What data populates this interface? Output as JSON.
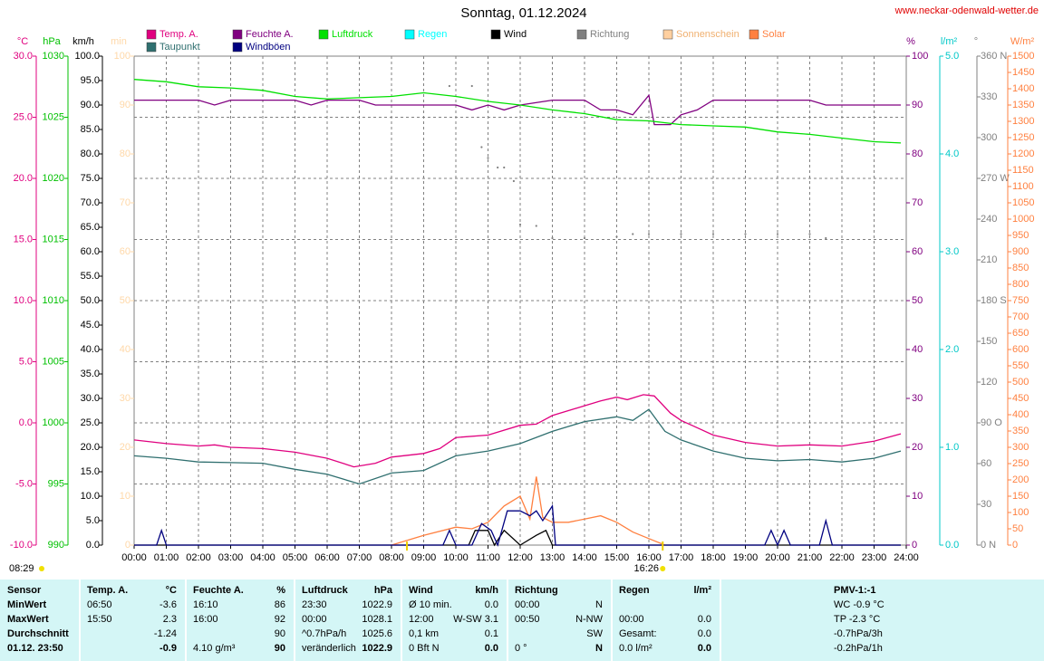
{
  "chart_data": {
    "type": "line",
    "title": "Sonntag, 01.12.2024",
    "site": "www.neckar-odenwald-wetter.de",
    "grid": true,
    "grid_axis": 0,
    "xlim": [
      0,
      24
    ],
    "xticks": [
      {
        "value": 0,
        "label": "00:00"
      },
      {
        "value": 1,
        "label": "01:00"
      },
      {
        "value": 2,
        "label": "02:00"
      },
      {
        "value": 3,
        "label": "03:00"
      },
      {
        "value": 4,
        "label": "04:00"
      },
      {
        "value": 5,
        "label": "05:00"
      },
      {
        "value": 6,
        "label": "06:00"
      },
      {
        "value": 7,
        "label": "07:00"
      },
      {
        "value": 8,
        "label": "08:00"
      },
      {
        "value": 9,
        "label": "09:00"
      },
      {
        "value": 10,
        "label": "10:00"
      },
      {
        "value": 11,
        "label": "11:00"
      },
      {
        "value": 12,
        "label": "12:00"
      },
      {
        "value": 13,
        "label": "13:00"
      },
      {
        "value": 14,
        "label": "14:00"
      },
      {
        "value": 15,
        "label": "15:00"
      },
      {
        "value": 16,
        "label": "16:00"
      },
      {
        "value": 17,
        "label": "17:00"
      },
      {
        "value": 18,
        "label": "18:00"
      },
      {
        "value": 19,
        "label": "19:00"
      },
      {
        "value": 20,
        "label": "20:00"
      },
      {
        "value": 21,
        "label": "21:00"
      },
      {
        "value": 22,
        "label": "22:00"
      },
      {
        "value": 23,
        "label": "23:00"
      },
      {
        "value": 24,
        "label": "24:00"
      }
    ],
    "axes": [
      {
        "unit": "°C",
        "color": "#e0007f",
        "lim": [
          -10,
          30
        ],
        "ticks": [
          {
            "value": 30,
            "label": "30.0"
          },
          {
            "value": 25,
            "label": "25.0"
          },
          {
            "value": 20,
            "label": "20.0"
          },
          {
            "value": 15,
            "label": "15.0"
          },
          {
            "value": 10,
            "label": "10.0"
          },
          {
            "value": 5,
            "label": "5.0"
          },
          {
            "value": 0,
            "label": "0.0"
          },
          {
            "value": -5,
            "label": "-5.0"
          },
          {
            "value": -10,
            "label": "-10.0"
          }
        ]
      },
      {
        "unit": "hPa",
        "color": "#00c000",
        "lim": [
          990,
          1030
        ],
        "ticks": [
          1030,
          1025,
          1020,
          1015,
          1010,
          1005,
          1000,
          995,
          990
        ]
      },
      {
        "unit": "km/h",
        "color": "#000000",
        "lim": [
          0,
          100
        ],
        "ticks": [
          {
            "value": 100,
            "label": "100.0"
          },
          {
            "value": 95,
            "label": "95.0"
          },
          {
            "value": 90,
            "label": "90.0"
          },
          {
            "value": 85,
            "label": "85.0"
          },
          {
            "value": 80,
            "label": "80.0"
          },
          {
            "value": 75,
            "label": "75.0"
          },
          {
            "value": 70,
            "label": "70.0"
          },
          {
            "value": 65,
            "label": "65.0"
          },
          {
            "value": 60,
            "label": "60.0"
          },
          {
            "value": 55,
            "label": "55.0"
          },
          {
            "value": 50,
            "label": "50.0"
          },
          {
            "value": 45,
            "label": "45.0"
          },
          {
            "value": 40,
            "label": "40.0"
          },
          {
            "value": 35,
            "label": "35.0"
          },
          {
            "value": 30,
            "label": "30.0"
          },
          {
            "value": 25,
            "label": "25.0"
          },
          {
            "value": 20,
            "label": "20.0"
          },
          {
            "value": 15,
            "label": "15.0"
          },
          {
            "value": 10,
            "label": "10.0"
          },
          {
            "value": 5,
            "label": "5.0"
          },
          {
            "value": 0,
            "label": "0.0"
          }
        ]
      },
      {
        "unit": "min",
        "color": "#ffd8a8",
        "lim": [
          0,
          100
        ],
        "ticks": [
          100,
          90,
          80,
          70,
          60,
          50,
          40,
          30,
          20,
          10,
          0
        ]
      },
      {
        "unit": "%",
        "color": "#800080",
        "lim": [
          0,
          100
        ],
        "ticks": [
          100,
          90,
          80,
          70,
          60,
          50,
          40,
          30,
          20,
          10,
          0
        ]
      },
      {
        "unit": "l/m²",
        "color": "#00c8c8",
        "lim": [
          0,
          5
        ],
        "ticks": [
          {
            "value": 5,
            "label": "5.0"
          },
          {
            "value": 4,
            "label": "4.0"
          },
          {
            "value": 3,
            "label": "3.0"
          },
          {
            "value": 2,
            "label": "2.0"
          },
          {
            "value": 1,
            "label": "1.0"
          },
          {
            "value": 0,
            "label": "0.0"
          }
        ]
      },
      {
        "unit": "°",
        "color": "#808080",
        "lim": [
          0,
          360
        ],
        "ticks": [
          {
            "value": 360,
            "label": "360 N"
          },
          330,
          300,
          {
            "value": 270,
            "label": "270 W"
          },
          240,
          210,
          {
            "value": 180,
            "label": "180 S"
          },
          150,
          120,
          {
            "value": 90,
            "label": "90 O"
          },
          60,
          30,
          {
            "value": 0,
            "label": "0 N"
          }
        ]
      },
      {
        "unit": "W/m²",
        "color": "#ff8040",
        "lim": [
          0,
          1500
        ],
        "ticks": [
          1500,
          1450,
          1400,
          1350,
          1300,
          1250,
          1200,
          1150,
          1100,
          1050,
          1000,
          950,
          900,
          850,
          800,
          750,
          700,
          650,
          600,
          550,
          500,
          450,
          400,
          350,
          300,
          250,
          200,
          150,
          100,
          50,
          0
        ]
      }
    ],
    "series": [
      {
        "name": "Temp. A.",
        "color": "#e0007f",
        "axis": 0,
        "style": "line",
        "x": [
          0,
          1,
          2,
          2.5,
          3,
          4,
          5,
          6,
          6.83,
          7.5,
          8,
          9,
          9.5,
          10,
          11,
          12,
          12.5,
          13,
          14,
          14.5,
          15,
          15.33,
          15.83,
          16.17,
          16.67,
          17,
          18,
          19,
          20,
          21,
          22,
          23,
          23.83
        ],
        "values": [
          -1.4,
          -1.7,
          -1.9,
          -1.8,
          -2.0,
          -2.1,
          -2.4,
          -2.9,
          -3.6,
          -3.3,
          -2.8,
          -2.5,
          -2.1,
          -1.2,
          -1.0,
          -0.2,
          -0.1,
          0.6,
          1.4,
          1.8,
          2.1,
          1.9,
          2.3,
          2.2,
          0.8,
          0.2,
          -1.0,
          -1.6,
          -1.9,
          -1.8,
          -1.9,
          -1.5,
          -0.9
        ]
      },
      {
        "name": "Feuchte A.",
        "color": "#800080",
        "axis": 4,
        "style": "line",
        "x": [
          0,
          1,
          2,
          2.5,
          3,
          5,
          5.5,
          6,
          7,
          7.5,
          10,
          10.5,
          11,
          11.5,
          12,
          13,
          14,
          14.5,
          15,
          15.5,
          16,
          16.17,
          16.67,
          17,
          17.5,
          18,
          21,
          21.5,
          23.83
        ],
        "values": [
          91,
          91,
          91,
          90,
          91,
          91,
          90,
          91,
          91,
          90,
          90,
          89,
          90,
          89,
          90,
          91,
          91,
          89,
          89,
          88,
          92,
          86,
          86,
          88,
          89,
          91,
          91,
          90,
          90
        ]
      },
      {
        "name": "Luftdruck",
        "color": "#00e000",
        "axis": 1,
        "style": "line",
        "x": [
          0,
          1,
          2,
          3,
          4,
          5,
          6,
          7,
          8,
          9,
          10,
          11,
          12,
          13,
          14,
          15,
          16,
          17,
          18,
          19,
          20,
          21,
          22,
          23,
          23.83
        ],
        "values": [
          1028.1,
          1027.9,
          1027.5,
          1027.4,
          1027.2,
          1026.7,
          1026.5,
          1026.6,
          1026.7,
          1027.0,
          1026.7,
          1026.3,
          1026.0,
          1025.6,
          1025.3,
          1024.8,
          1024.7,
          1024.4,
          1024.3,
          1024.2,
          1023.8,
          1023.6,
          1023.3,
          1023.0,
          1022.9
        ]
      },
      {
        "name": "Regen",
        "color": "#00ffff",
        "axis": 5,
        "style": "line",
        "x": [],
        "values": []
      },
      {
        "name": "Wind",
        "color": "#000000",
        "axis": 2,
        "style": "line",
        "x": [
          0,
          10.4,
          10.6,
          11,
          11.2,
          11.5,
          12,
          12.5,
          12.8,
          13,
          23.83
        ],
        "values": [
          0,
          0,
          3,
          3,
          0,
          3,
          0,
          2,
          3,
          0,
          0
        ]
      },
      {
        "name": "Richtung",
        "color": "#808080",
        "axis": 6,
        "style": "dots",
        "x": [
          0.8,
          9.8,
          10.5,
          10.8,
          11,
          11.3,
          11.5,
          11.8,
          12,
          12.5,
          13,
          14,
          15,
          15.5,
          16,
          17,
          18,
          19,
          20,
          21,
          21.5
        ],
        "values": [
          338,
          338,
          338,
          293,
          285,
          278,
          278,
          268,
          236,
          235,
          226,
          226,
          227,
          229,
          229,
          229,
          229,
          229,
          229,
          229,
          226
        ]
      },
      {
        "name": "Sonnenschein",
        "color": "#ffd0a0",
        "axis": 3,
        "style": "line",
        "x": [],
        "values": []
      },
      {
        "name": "Solar",
        "color": "#ff8040",
        "axis": 7,
        "style": "line",
        "x": [
          8,
          9,
          10,
          10.5,
          11,
          11.5,
          12,
          12.3,
          12.5,
          12.7,
          13,
          13.5,
          14,
          14.5,
          15,
          15.5,
          16,
          16.5
        ],
        "values": [
          0,
          30,
          55,
          50,
          70,
          120,
          150,
          80,
          210,
          85,
          70,
          70,
          80,
          90,
          70,
          40,
          20,
          0
        ]
      },
      {
        "name": "Taupunkt",
        "color": "#2f6f6f",
        "axis": 0,
        "style": "line",
        "x": [
          0,
          1,
          2,
          4,
          5,
          6,
          7,
          8,
          9,
          10,
          11,
          12,
          13,
          14,
          15,
          15.5,
          16,
          16.5,
          17,
          18,
          19,
          20,
          21,
          22,
          23,
          23.83
        ],
        "values": [
          -2.7,
          -2.9,
          -3.2,
          -3.3,
          -3.8,
          -4.2,
          -5.0,
          -4.1,
          -3.9,
          -2.7,
          -2.3,
          -1.7,
          -0.7,
          0.1,
          0.5,
          0.2,
          1.1,
          -0.7,
          -1.4,
          -2.3,
          -2.9,
          -3.1,
          -3.0,
          -3.2,
          -2.9,
          -2.3
        ]
      },
      {
        "name": "Windböen",
        "color": "#000080",
        "axis": 2,
        "style": "line",
        "x": [
          0,
          0.7,
          0.85,
          1,
          9.6,
          9.8,
          10,
          10.5,
          10.8,
          11.1,
          11.3,
          11.6,
          12,
          12.3,
          12.5,
          12.7,
          13,
          13.1,
          19.6,
          19.8,
          20,
          20.2,
          20.4,
          21.3,
          21.5,
          21.7,
          23.83
        ],
        "values": [
          0,
          0,
          3,
          0,
          0,
          3,
          0,
          0,
          4.4,
          3,
          0,
          7,
          7,
          6,
          7,
          5,
          8,
          0,
          0,
          3,
          0,
          3,
          0,
          0,
          5,
          0,
          0
        ]
      }
    ],
    "sunrise": {
      "label": "08:29",
      "x": 8.48
    },
    "sunset": {
      "label": "16:26",
      "x": 16.43
    }
  },
  "table": {
    "header": [
      {
        "left": "Sensor"
      },
      {
        "left": "Temp. A.",
        "right": "°C"
      },
      {
        "left": "Feuchte A.",
        "right": "%"
      },
      {
        "left": "Luftdruck",
        "right": "hPa"
      },
      {
        "left": "Wind",
        "right": "km/h"
      },
      {
        "left": "Richtung"
      },
      {
        "left": "Regen",
        "right": "l/m²"
      },
      {
        "left": "PMV-1:-1"
      }
    ],
    "rows": [
      [
        {
          "left": "MinWert"
        },
        {
          "left": "06:50",
          "right": "-3.6"
        },
        {
          "left": "16:10",
          "right": "86"
        },
        {
          "left": "23:30",
          "right": "1022.9"
        },
        {
          "left": "Ø 10 min.",
          "right": "0.0"
        },
        {
          "left": "00:00",
          "right": "N"
        },
        {},
        {
          "left": "WC -0.9 °C"
        }
      ],
      [
        {
          "left": "MaxWert"
        },
        {
          "left": "15:50",
          "right": "2.3"
        },
        {
          "left": "16:00",
          "right": "92"
        },
        {
          "left": "00:00",
          "right": "1028.1"
        },
        {
          "left": "12:00",
          "right": "W-SW 3.1"
        },
        {
          "left": "00:50",
          "right": "N-NW"
        },
        {
          "left": "00:00",
          "right": "0.0"
        },
        {
          "left": "TP -2.3 °C"
        }
      ],
      [
        {
          "left": "Durchschnitt"
        },
        {
          "right": "-1.24"
        },
        {
          "right": "90"
        },
        {
          "left": "^0.7hPa/h",
          "right": "1025.6"
        },
        {
          "left": "0,1 km",
          "right": "0.1"
        },
        {
          "right": "SW"
        },
        {
          "left": "Gesamt:",
          "right": "0.0"
        },
        {
          "left": "-0.7hPa/3h"
        }
      ],
      [
        {
          "left": "01.12. 23:50"
        },
        {
          "right": "-0.9"
        },
        {
          "left": "4.10 g/m³",
          "right": "90"
        },
        {
          "left": "veränderlich",
          "right": "1022.9"
        },
        {
          "left": "0 Bft N",
          "right": "0.0"
        },
        {
          "left": "0 °",
          "right": "N"
        },
        {
          "left": "0.0 l/m²",
          "right": "0.0"
        },
        {
          "left": "-0.2hPa/1h"
        }
      ]
    ]
  }
}
